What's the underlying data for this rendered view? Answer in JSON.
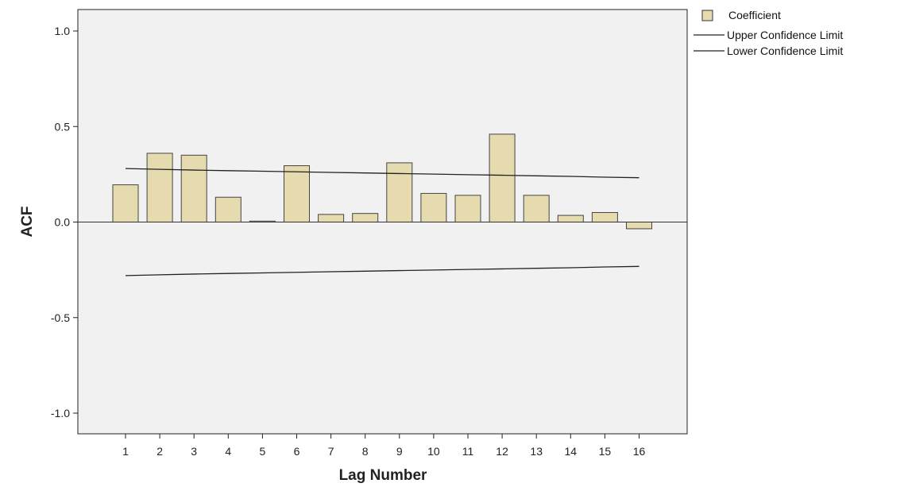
{
  "chart_data": {
    "type": "bar",
    "title": "",
    "xlabel": "Lag Number",
    "ylabel": "ACF",
    "ylim": [
      -1.1,
      1.1
    ],
    "yticks": [
      1.0,
      0.5,
      0.0,
      -0.5,
      -1.0
    ],
    "ytick_labels": [
      "1.0",
      "0.5",
      "0.0",
      "-0.5",
      "-1.0"
    ],
    "categories": [
      "1",
      "2",
      "3",
      "4",
      "5",
      "6",
      "7",
      "8",
      "9",
      "10",
      "11",
      "12",
      "13",
      "14",
      "15",
      "16"
    ],
    "series": [
      {
        "name": "Coefficient",
        "values": [
          0.195,
          0.36,
          0.35,
          0.13,
          0.005,
          0.295,
          0.04,
          0.045,
          0.31,
          0.15,
          0.14,
          0.46,
          0.14,
          0.035,
          0.05,
          -0.035
        ]
      },
      {
        "name": "Upper Confidence Limit",
        "values": [
          0.28,
          0.276,
          0.272,
          0.269,
          0.266,
          0.263,
          0.26,
          0.257,
          0.254,
          0.251,
          0.248,
          0.245,
          0.242,
          0.239,
          0.235,
          0.232
        ]
      },
      {
        "name": "Lower Confidence Limit",
        "values": [
          -0.28,
          -0.276,
          -0.272,
          -0.269,
          -0.266,
          -0.263,
          -0.26,
          -0.257,
          -0.254,
          -0.251,
          -0.248,
          -0.245,
          -0.242,
          -0.239,
          -0.235,
          -0.232
        ]
      }
    ],
    "legend_position": "top-right",
    "grid": false,
    "colors": {
      "bar_fill": "#e6dbae",
      "bar_stroke": "#444444",
      "plot_background": "#f1f1f1",
      "line": "#222222"
    }
  }
}
